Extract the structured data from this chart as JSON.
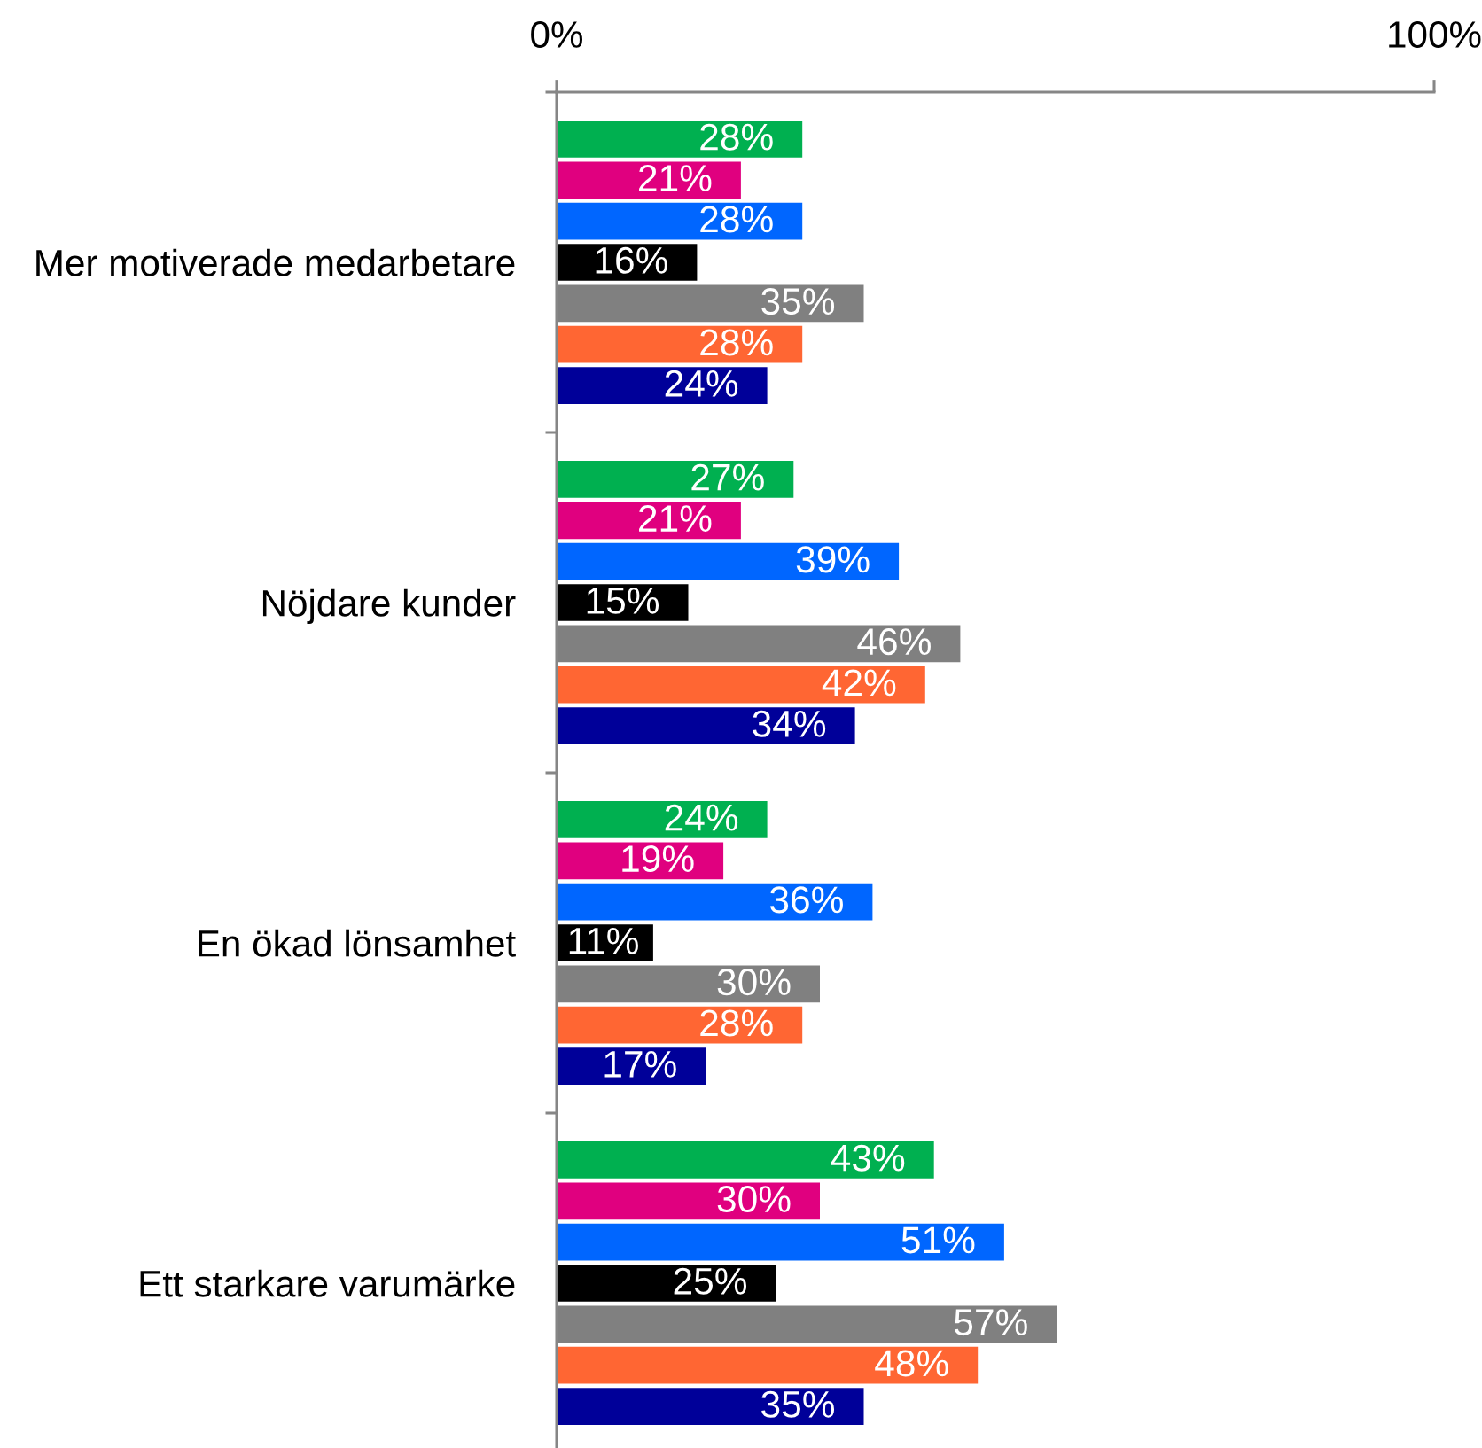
{
  "chart_data": {
    "type": "bar",
    "orientation": "horizontal",
    "categories": [
      "Mer motiverade medarbetare",
      "Nöjdare kunder",
      "En ökad lönsamhet",
      "Ett starkare varumärke"
    ],
    "xlim": [
      0,
      100
    ],
    "xticks": [
      {
        "value": 0,
        "label": "0%"
      },
      {
        "value": 100,
        "label": "100%"
      }
    ],
    "series": [
      {
        "color": "#00b050",
        "values": [
          28,
          27,
          24,
          43
        ],
        "value_labels": [
          "28%",
          "27%",
          "24%",
          "43%"
        ]
      },
      {
        "color": "#e0007f",
        "values": [
          21,
          21,
          19,
          30
        ],
        "value_labels": [
          "21%",
          "21%",
          "19%",
          "30%"
        ]
      },
      {
        "color": "#0066ff",
        "values": [
          28,
          39,
          36,
          51
        ],
        "value_labels": [
          "28%",
          "39%",
          "36%",
          "51%"
        ]
      },
      {
        "color": "#000000",
        "values": [
          16,
          15,
          11,
          25
        ],
        "value_labels": [
          "16%",
          "15%",
          "11%",
          "25%"
        ]
      },
      {
        "color": "#808080",
        "values": [
          35,
          46,
          30,
          57
        ],
        "value_labels": [
          "35%",
          "46%",
          "30%",
          "57%"
        ]
      },
      {
        "color": "#ff6633",
        "values": [
          28,
          42,
          28,
          48
        ],
        "value_labels": [
          "28%",
          "42%",
          "28%",
          "48%"
        ]
      },
      {
        "color": "#000099",
        "values": [
          24,
          34,
          17,
          35
        ],
        "value_labels": [
          "24%",
          "34%",
          "17%",
          "35%"
        ]
      }
    ]
  }
}
